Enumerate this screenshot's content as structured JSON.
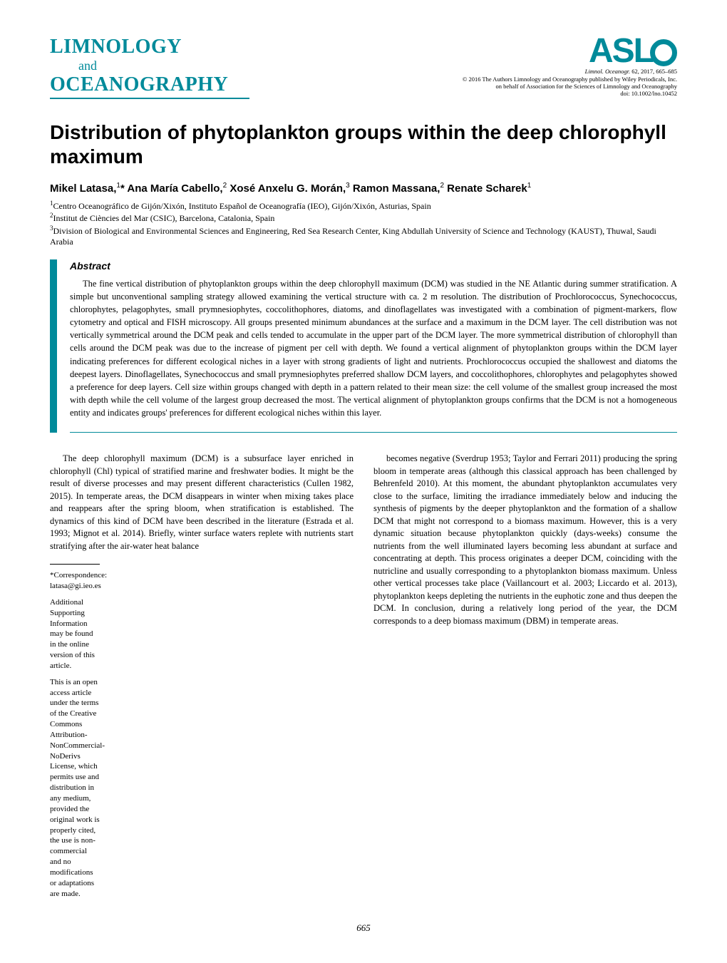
{
  "journal": {
    "line1": "LIMNOLOGY",
    "line2": "and",
    "line3": "OCEANOGRAPHY",
    "logo_text": "ASL",
    "citation_italic": "Limnol. Oceanogr.",
    "citation_rest": " 62, 2017, 665–685",
    "copyright": "© 2016 The Authors Limnology and Oceanography published by Wiley Periodicals, Inc.",
    "onbehalf": "on behalf of Association for the Sciences of Limnology and Oceanography",
    "doi": "doi: 10.1002/lno.10452"
  },
  "article": {
    "title": "Distribution of phytoplankton groups within the deep chlorophyll maximum",
    "authors_html": "Mikel Latasa,<sup>1</sup>* Ana María Cabello,<sup>2</sup> Xosé Anxelu G. Morán,<sup>3</sup> Ramon Massana,<sup>2</sup> Renate Scharek<sup>1</sup>",
    "affiliations": [
      "<sup>1</sup>Centro Oceanográfico de Gijón/Xixón, Instituto Español de Oceanografía (IEO), Gijón/Xixón, Asturias, Spain",
      "<sup>2</sup>Institut de Ciències del Mar (CSIC), Barcelona, Catalonia, Spain",
      "<sup>3</sup>Division of Biological and Environmental Sciences and Engineering, Red Sea Research Center, King Abdullah University of Science and Technology (KAUST), Thuwal, Saudi Arabia"
    ],
    "abstract_heading": "Abstract",
    "abstract_text": "The fine vertical distribution of phytoplankton groups within the deep chlorophyll maximum (DCM) was studied in the NE Atlantic during summer stratification. A simple but unconventional sampling strategy allowed examining the vertical structure with ca. 2 m resolution. The distribution of Prochlorococcus, Synechococcus, chlorophytes, pelagophytes, small prymnesiophytes, coccolithophores, diatoms, and dinoflagellates was investigated with a combination of pigment-markers, flow cytometry and optical and FISH microscopy. All groups presented minimum abundances at the surface and a maximum in the DCM layer. The cell distribution was not vertically symmetrical around the DCM peak and cells tended to accumulate in the upper part of the DCM layer. The more symmetrical distribution of chlorophyll than cells around the DCM peak was due to the increase of pigment per cell with depth. We found a vertical alignment of phytoplankton groups within the DCM layer indicating preferences for different ecological niches in a layer with strong gradients of light and nutrients. Prochlorococcus occupied the shallowest and diatoms the deepest layers. Dinoflagellates, Synechococcus and small prymnesiophytes preferred shallow DCM layers, and coccolithophores, chlorophytes and pelagophytes showed a preference for deep layers. Cell size within groups changed with depth in a pattern related to their mean size: the cell volume of the smallest group increased the most with depth while the cell volume of the largest group decreased the most. The vertical alignment of phytoplankton groups confirms that the DCM is not a homogeneous entity and indicates groups' preferences for different ecological niches within this layer."
  },
  "body": {
    "col1_p1": "The deep chlorophyll maximum (DCM) is a subsurface layer enriched in chlorophyll (Chl) typical of stratified marine and freshwater bodies. It might be the result of diverse processes and may present different characteristics (Cullen 1982, 2015). In temperate areas, the DCM disappears in winter when mixing takes place and reappears after the spring bloom, when stratification is established. The dynamics of this kind of DCM have been described in the literature (Estrada et al. 1993; Mignot et al. 2014). Briefly, winter surface waters replete with nutrients start stratifying after the air-water heat balance",
    "col2_p1": "becomes negative (Sverdrup 1953; Taylor and Ferrari 2011) producing the spring bloom in temperate areas (although this classical approach has been challenged by Behrenfeld 2010). At this moment, the abundant phytoplankton accumulates very close to the surface, limiting the irradiance immediately below and inducing the synthesis of pigments by the deeper phytoplankton and the formation of a shallow DCM that might not correspond to a biomass maximum. However, this is a very dynamic situation because phytoplankton quickly (days-weeks) consume the nutrients from the well illuminated layers becoming less abundant at surface and concentrating at depth. This process originates a deeper DCM, coinciding with the nutricline and usually corresponding to a phytoplankton biomass maximum. Unless other vertical processes take place (Vaillancourt et al. 2003; Liccardo et al. 2013), phytoplankton keeps depleting the nutrients in the euphotic zone and thus deepen the DCM. In conclusion, during a relatively long period of the year, the DCM corresponds to a deep biomass maximum (DBM) in temperate areas."
  },
  "footnotes": {
    "correspondence": "*Correspondence: latasa@gi.ieo.es",
    "supporting": "Additional Supporting Information may be found in the online version of this article.",
    "license": "This is an open access article under the terms of the Creative Commons Attribution-NonCommercial-NoDerivs License, which permits use and distribution in any medium, provided the original work is properly cited, the use is non-commercial and no modifications or adaptations are made."
  },
  "page_number": "665",
  "colors": {
    "accent": "#008a9a",
    "text": "#000000",
    "background": "#ffffff"
  },
  "typography": {
    "title_fontsize": 28,
    "author_fontsize": 15,
    "body_fontsize": 12.5,
    "footnote_fontsize": 11,
    "pubinfo_fontsize": 8.5
  }
}
